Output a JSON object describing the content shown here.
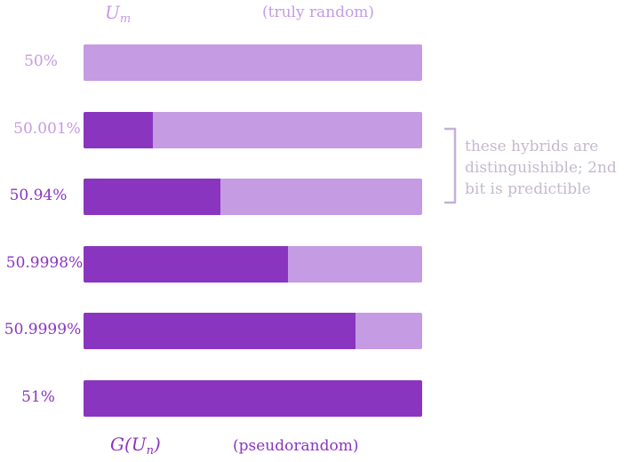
{
  "colors": {
    "light": "#c59be3",
    "dark": "#8a35bf",
    "note": "#c4bad0",
    "brace": "#c4b0da"
  },
  "header": {
    "top_math_base": "U",
    "top_math_sub": "m",
    "top_caption": "(truly random)",
    "bottom_math_pre": "G(U",
    "bottom_math_sub": "n",
    "bottom_math_post": ")",
    "bottom_caption": "(pseudorandom)"
  },
  "rows": [
    {
      "label": "50%",
      "fraction": 0.0,
      "label_color": "light"
    },
    {
      "label": "50.001%",
      "fraction": 0.205,
      "label_color": "light"
    },
    {
      "label": "50.94%",
      "fraction": 0.405,
      "label_color": "dark"
    },
    {
      "label": "50.9998%",
      "fraction": 0.604,
      "label_color": "dark"
    },
    {
      "label": "50.9999%",
      "fraction": 0.803,
      "label_color": "dark"
    },
    {
      "label": "51%",
      "fraction": 1.0,
      "label_color": "dark"
    }
  ],
  "annotation": {
    "lines": [
      "these hybrids are",
      "distinguishible; 2nd",
      "bit is predictible"
    ]
  }
}
